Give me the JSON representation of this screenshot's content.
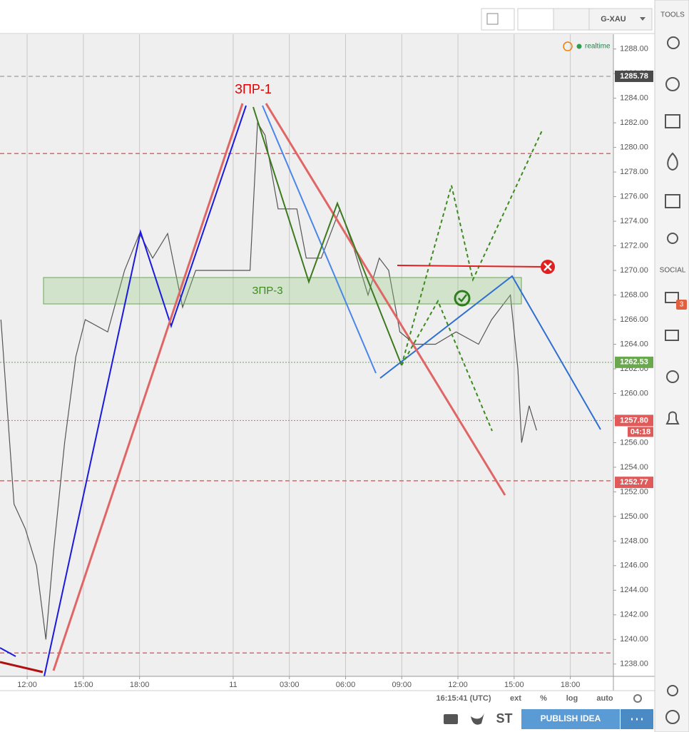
{
  "toolbar": {
    "symbol": "G-XAU"
  },
  "sidebar": {
    "tools": "TOOLS",
    "social": "SOCIAL",
    "badge": "3"
  },
  "chart_data": {
    "type": "line",
    "status": "realtime",
    "annotations": {
      "zpr1": "ЗПР-1",
      "zpr3": "ЗПР-3"
    },
    "x": [
      -1.4,
      -0.7,
      -0.1,
      0.5,
      1.0,
      1.4,
      2.0,
      2.6,
      3.1,
      4.3,
      5.2,
      6.0,
      6.7,
      7.5,
      8.3,
      9.0,
      10.0,
      11.1,
      11.9,
      12.3,
      12.7,
      13.4,
      14.4,
      14.9,
      15.7,
      16.7,
      17.4,
      18.2,
      18.8,
      19.3,
      19.9,
      20.7,
      21.8,
      22.9,
      24.1,
      24.8,
      25.8,
      26.2,
      26.4,
      26.8,
      27.2
    ],
    "series": [
      {
        "color": "#555555",
        "values": [
          1266,
          1251,
          1249,
          1246,
          1240,
          1247,
          1256,
          1263,
          1266,
          1265,
          1270,
          1273,
          1271,
          1273,
          1267,
          1270,
          1270,
          1270,
          1270,
          1282,
          1281,
          1275,
          1275,
          1271,
          1271,
          1275,
          1272,
          1268,
          1271,
          1270,
          1265,
          1264,
          1264,
          1265,
          1264,
          1266,
          1268,
          1262,
          1256,
          1259,
          1257
        ]
      }
    ],
    "xlim": [
      -1.45,
      31.3
    ],
    "xticks": [
      {
        "value": 0,
        "label": "12:00"
      },
      {
        "value": 3,
        "label": "15:00"
      },
      {
        "value": 6,
        "label": "18:00"
      },
      {
        "value": 11,
        "label": "11"
      },
      {
        "value": 14,
        "label": "03:00"
      },
      {
        "value": 17,
        "label": "06:00"
      },
      {
        "value": 20,
        "label": "09:00"
      },
      {
        "value": 23,
        "label": "12:00"
      },
      {
        "value": 26,
        "label": "15:00"
      },
      {
        "value": 29,
        "label": "18:00"
      }
    ],
    "xgrid": true,
    "ylim": [
      1237,
      1289.2
    ],
    "yticks": [
      {
        "value": 1238,
        "label": "1238.00"
      },
      {
        "value": 1240,
        "label": "1240.00"
      },
      {
        "value": 1242,
        "label": "1242.00"
      },
      {
        "value": 1244,
        "label": "1244.00"
      },
      {
        "value": 1246,
        "label": "1246.00"
      },
      {
        "value": 1248,
        "label": "1248.00"
      },
      {
        "value": 1250,
        "label": "1250.00"
      },
      {
        "value": 1252,
        "label": "1252.00"
      },
      {
        "value": 1254,
        "label": "1254.00"
      },
      {
        "value": 1256,
        "label": "1256.00"
      },
      {
        "value": 1258,
        "label": "1258.00"
      },
      {
        "value": 1260,
        "label": "1260.00"
      },
      {
        "value": 1262,
        "label": "1262.00"
      },
      {
        "value": 1264,
        "label": "1264.00"
      },
      {
        "value": 1266,
        "label": "1266.00"
      },
      {
        "value": 1268,
        "label": "1268.00"
      },
      {
        "value": 1270,
        "label": "1270.00"
      },
      {
        "value": 1272,
        "label": "1272.00"
      },
      {
        "value": 1274,
        "label": "1274.00"
      },
      {
        "value": 1276,
        "label": "1276.00"
      },
      {
        "value": 1278,
        "label": "1278.00"
      },
      {
        "value": 1280,
        "label": "1280.00"
      },
      {
        "value": 1282,
        "label": "1282.00"
      },
      {
        "value": 1284,
        "label": "1284.00"
      },
      {
        "value": 1286,
        "label": "1286.00"
      },
      {
        "value": 1288,
        "label": "1288.00"
      }
    ],
    "levels": [
      {
        "value": 1285.78,
        "color": "#aaaaaa",
        "style": "dashed"
      },
      {
        "value": 1279.5,
        "color": "#e06666",
        "style": "dashed"
      },
      {
        "value": 1262.53,
        "color": "#6aa84f",
        "style": "dotted"
      },
      {
        "value": 1257.8,
        "color": "#e06666",
        "style": "dotted"
      },
      {
        "value": 1252.9,
        "color": "#e06666",
        "style": "dashed"
      },
      {
        "value": 1238.9,
        "color": "#e06666",
        "style": "dashed"
      }
    ],
    "price_labels": [
      {
        "value": 1285.78,
        "label": "1285.78",
        "color": "#4a4a4a"
      },
      {
        "value": 1262.53,
        "label": "1262.53",
        "color": "#6aa84f"
      },
      {
        "value": 1257.8,
        "label": "1257.80",
        "color": "#e05a5a"
      },
      {
        "value": 1252.77,
        "label": "1252.77",
        "color": "#e05a5a"
      }
    ],
    "countdown": "04:18"
  },
  "status_bar": {
    "time": "16:15:41 (UTC)",
    "ext": "ext",
    "percent": "%",
    "log": "log",
    "auto": "auto"
  },
  "footer": {
    "st": "ST",
    "publish": "PUBLISH IDEA"
  }
}
